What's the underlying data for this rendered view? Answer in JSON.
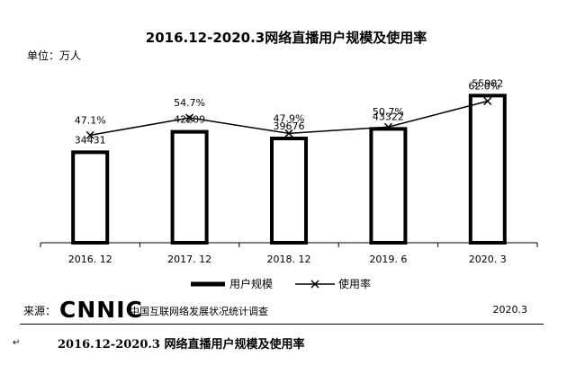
{
  "chart_data": {
    "type": "bar",
    "title": "2016.12-2020.3网络直播用户规模及使用率",
    "unit_label": "单位：万人",
    "categories": [
      "2016. 12",
      "2017. 12",
      "2018. 12",
      "2019. 6",
      "2020. 3"
    ],
    "series": [
      {
        "name": "用户规模",
        "type": "bar",
        "values": [
          34431,
          42209,
          39676,
          43322,
          55982
        ],
        "labels": [
          "34431",
          "42209",
          "39676",
          "43322",
          "55982"
        ]
      },
      {
        "name": "使用率",
        "type": "line",
        "values": [
          47.1,
          54.7,
          47.9,
          50.7,
          62.0
        ],
        "labels": [
          "47.1%",
          "54.7%",
          "47.9%",
          "50.7%",
          "62.0%"
        ]
      }
    ],
    "bar_ylim": [
      0,
      65000
    ],
    "line_ylim": [
      0,
      100
    ],
    "legend_position": "bottom",
    "grid": false
  },
  "source": {
    "label": "来源：",
    "logo_text": "CNNIC",
    "org": "中国互联网络发展状况统计调查",
    "date": "2020.3"
  },
  "caption": {
    "marker": "↵",
    "text": "2016.12-2020.3 网络直播用户规模及使用率"
  }
}
